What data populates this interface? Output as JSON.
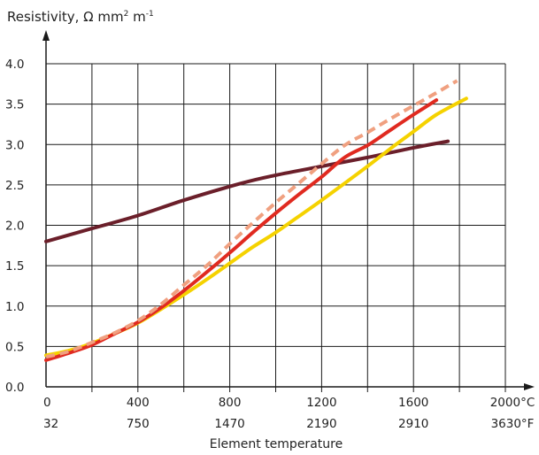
{
  "chart_data": {
    "type": "line",
    "ylabel": "Resistivity, Ω mm² m⁻¹",
    "ylabel_parts": {
      "pre": "Resistivity, Ω mm",
      "sup1": "2",
      "mid": " m",
      "sup2": "-1"
    },
    "xlabel": "Element temperature",
    "xlim": [
      0,
      2000
    ],
    "ylim": [
      0,
      4.0
    ],
    "grid": true,
    "y_ticks": [
      0.0,
      0.5,
      1.0,
      1.5,
      2.0,
      2.5,
      3.0,
      3.5,
      4.0
    ],
    "y_tick_labels": [
      "0.0",
      "0.5",
      "1.0",
      "1.5",
      "2.0",
      "2.5",
      "3.0",
      "3.5",
      "4.0"
    ],
    "x_tick_values_c": [
      0,
      400,
      800,
      1200,
      1600,
      2000
    ],
    "x_tick_labels_c": [
      "0",
      "400",
      "800",
      "1200",
      "1600",
      "2000°C"
    ],
    "x_tick_labels_f": [
      "32",
      "750",
      "1470",
      "2190",
      "2910",
      "3630°F"
    ],
    "x_grid_step": 200,
    "series": [
      {
        "color": "#6b1f2a",
        "dashed": false,
        "x": [
          0,
          200,
          400,
          600,
          850,
          1000,
          1200,
          1400,
          1600,
          1750
        ],
        "y": [
          1.8,
          1.96,
          2.12,
          2.31,
          2.52,
          2.62,
          2.73,
          2.84,
          2.96,
          3.04
        ]
      },
      {
        "color": "#f0a080",
        "dashed": true,
        "x": [
          0,
          100,
          200,
          300,
          400,
          500,
          600,
          700,
          800,
          900,
          1000,
          1100,
          1200,
          1300,
          1400,
          1500,
          1600,
          1700,
          1790
        ],
        "y": [
          0.37,
          0.44,
          0.55,
          0.67,
          0.82,
          1.02,
          1.26,
          1.5,
          1.77,
          2.03,
          2.28,
          2.52,
          2.76,
          2.99,
          3.15,
          3.32,
          3.48,
          3.64,
          3.79
        ]
      },
      {
        "color": "#e02a20",
        "dashed": false,
        "x": [
          0,
          100,
          200,
          300,
          400,
          500,
          600,
          700,
          800,
          900,
          1000,
          1100,
          1200,
          1300,
          1400,
          1500,
          1600,
          1700
        ],
        "y": [
          0.33,
          0.42,
          0.52,
          0.66,
          0.8,
          0.98,
          1.19,
          1.42,
          1.66,
          1.91,
          2.15,
          2.38,
          2.6,
          2.84,
          2.99,
          3.18,
          3.37,
          3.55
        ]
      },
      {
        "color": "#f5d200",
        "dashed": false,
        "x": [
          0,
          100,
          200,
          300,
          400,
          500,
          600,
          700,
          800,
          900,
          1000,
          1100,
          1200,
          1300,
          1400,
          1500,
          1600,
          1700,
          1830
        ],
        "y": [
          0.39,
          0.45,
          0.54,
          0.66,
          0.79,
          0.96,
          1.14,
          1.33,
          1.53,
          1.73,
          1.91,
          2.11,
          2.31,
          2.52,
          2.73,
          2.95,
          3.16,
          3.37,
          3.57
        ]
      }
    ]
  }
}
